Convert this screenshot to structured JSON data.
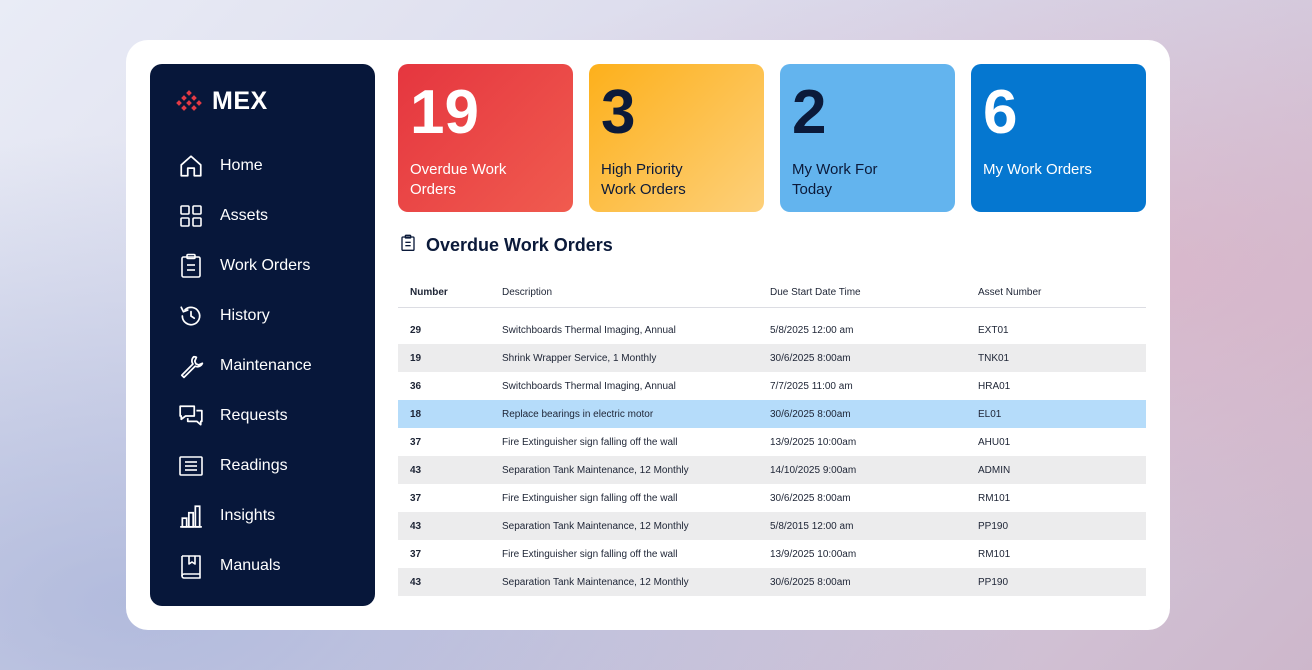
{
  "brand": {
    "name": "MEX"
  },
  "sidebar": {
    "items": [
      {
        "label": "Home",
        "icon": "home-icon"
      },
      {
        "label": "Assets",
        "icon": "grid-icon"
      },
      {
        "label": "Work Orders",
        "icon": "clipboard-icon"
      },
      {
        "label": "History",
        "icon": "history-icon"
      },
      {
        "label": "Maintenance",
        "icon": "wrench-icon"
      },
      {
        "label": "Requests",
        "icon": "chat-icon"
      },
      {
        "label": "Readings",
        "icon": "list-icon"
      },
      {
        "label": "Insights",
        "icon": "bar-chart-icon"
      },
      {
        "label": "Manuals",
        "icon": "book-icon"
      }
    ]
  },
  "stats": [
    {
      "value": "19",
      "label": "Overdue Work Orders",
      "color": "#e5363f"
    },
    {
      "value": "3",
      "label": "High Priority Work Orders",
      "color": "#fdb01b"
    },
    {
      "value": "2",
      "label": "My Work For Today",
      "color": "#63b4ee"
    },
    {
      "value": "6",
      "label": "My Work Orders",
      "color": "#0577d0"
    }
  ],
  "overdue": {
    "title": "Overdue Work Orders",
    "columns": [
      "Number",
      "Description",
      "Due Start Date Time",
      "Asset Number"
    ],
    "rows": [
      [
        "29",
        "Switchboards Thermal Imaging, Annual",
        "5/8/2025 12:00 am",
        "EXT01"
      ],
      [
        "19",
        "Shrink Wrapper Service, 1 Monthly",
        "30/6/2025 8:00am",
        "TNK01"
      ],
      [
        "36",
        "Switchboards Thermal Imaging, Annual",
        "7/7/2025 11:00 am",
        "HRA01"
      ],
      [
        "18",
        "Replace bearings in electric motor",
        "30/6/2025 8:00am",
        "EL01"
      ],
      [
        "37",
        "Fire Extinguisher sign falling off the wall",
        "13/9/2025 10:00am",
        "AHU01"
      ],
      [
        "43",
        "Separation Tank Maintenance, 12 Monthly",
        "14/10/2025 9:00am",
        "ADMIN"
      ],
      [
        "37",
        "Fire Extinguisher sign falling off the wall",
        "30/6/2025 8:00am",
        "RM101"
      ],
      [
        "43",
        "Separation Tank Maintenance, 12 Monthly",
        "5/8/2015 12:00 am",
        "PP190"
      ],
      [
        "37",
        "Fire Extinguisher sign falling off the wall",
        "13/9/2025 10:00am",
        "RM101"
      ],
      [
        "43",
        "Separation Tank Maintenance, 12 Monthly",
        "30/6/2025 8:00am",
        "PP190"
      ]
    ],
    "selected_row": 3
  }
}
